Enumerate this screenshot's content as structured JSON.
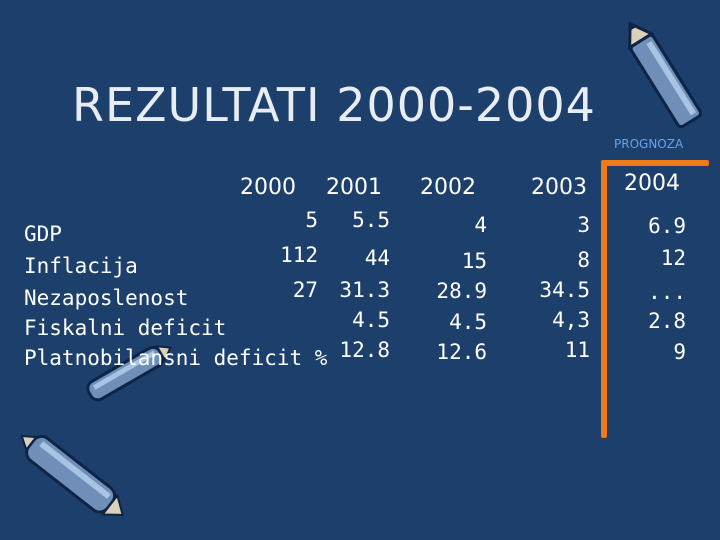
{
  "title": "REZULTATI 2000-2004",
  "prognoza": "PROGNOZA",
  "years": [
    "2000",
    "2001",
    "2002",
    "2003",
    "2004"
  ],
  "rows": [
    {
      "label": "GDP",
      "values": [
        "5",
        "5.5",
        "4",
        "3",
        "6.9"
      ]
    },
    {
      "label": "Inflacija",
      "values": [
        "112",
        "44",
        "15",
        "8",
        "12"
      ]
    },
    {
      "label": "Nezaposlenost",
      "values": [
        "27",
        "31.3",
        "28.9",
        "34.5",
        "..."
      ]
    },
    {
      "label": "Fiskalni deficit",
      "values": [
        "",
        "4.5",
        "4.5",
        "4,3",
        "2.8"
      ]
    },
    {
      "label": "Platnobilansni deficit %",
      "values": [
        "",
        "12.8",
        "12.6",
        "11",
        "9"
      ]
    }
  ],
  "colors": {
    "background": "#1d3f6b",
    "accent": "#f07a1a",
    "prognoza": "#6aa3e8"
  },
  "decorations": [
    "pencil-icon",
    "crayon-icon"
  ]
}
